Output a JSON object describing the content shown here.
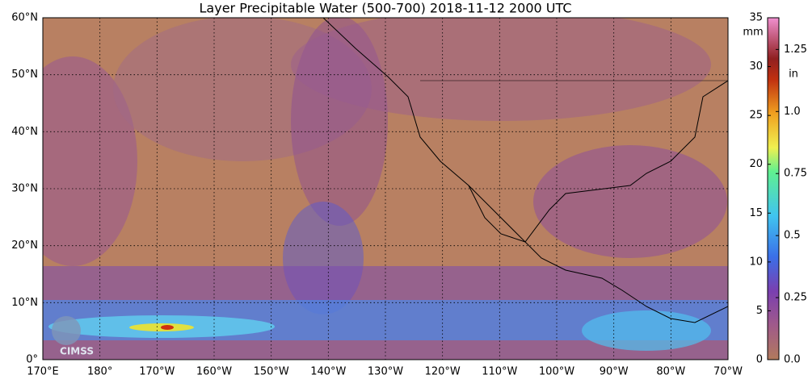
{
  "map": {
    "title": "Layer Precipitable Water (500-700)  2018-11-12 2000 UTC",
    "lat_ticks": [
      {
        "value": 0,
        "label": "0°"
      },
      {
        "value": 10,
        "label": "10°N"
      },
      {
        "value": 20,
        "label": "20°N"
      },
      {
        "value": 30,
        "label": "30°N"
      },
      {
        "value": 40,
        "label": "40°N"
      },
      {
        "value": 50,
        "label": "50°N"
      },
      {
        "value": 60,
        "label": "60°N"
      }
    ],
    "lon_ticks": [
      {
        "value": 170,
        "label": "170°E"
      },
      {
        "value": 180,
        "label": "180°"
      },
      {
        "value": 190,
        "label": "170°W"
      },
      {
        "value": 200,
        "label": "160°W"
      },
      {
        "value": 210,
        "label": "150°W"
      },
      {
        "value": 220,
        "label": "140°W"
      },
      {
        "value": 230,
        "label": "130°W"
      },
      {
        "value": 240,
        "label": "120°W"
      },
      {
        "value": 250,
        "label": "110°W"
      },
      {
        "value": 260,
        "label": "100°W"
      },
      {
        "value": 270,
        "label": "90°W"
      },
      {
        "value": 280,
        "label": "80°W"
      },
      {
        "value": 290,
        "label": "70°W"
      }
    ],
    "logo": "CIMSS",
    "colorbar": {
      "mm_unit": "mm",
      "in_unit": "in",
      "mm_ticks": [
        0,
        5,
        10,
        15,
        20,
        25,
        30,
        35
      ],
      "in_ticks": [
        {
          "value": 0,
          "label": "0.0"
        },
        {
          "value": 0.25,
          "label": "0.25"
        },
        {
          "value": 0.5,
          "label": "0.5"
        },
        {
          "value": 0.75,
          "label": "0.75"
        },
        {
          "value": 1,
          "label": "1.0"
        },
        {
          "value": 1.25,
          "label": "1.25"
        }
      ]
    }
  }
}
